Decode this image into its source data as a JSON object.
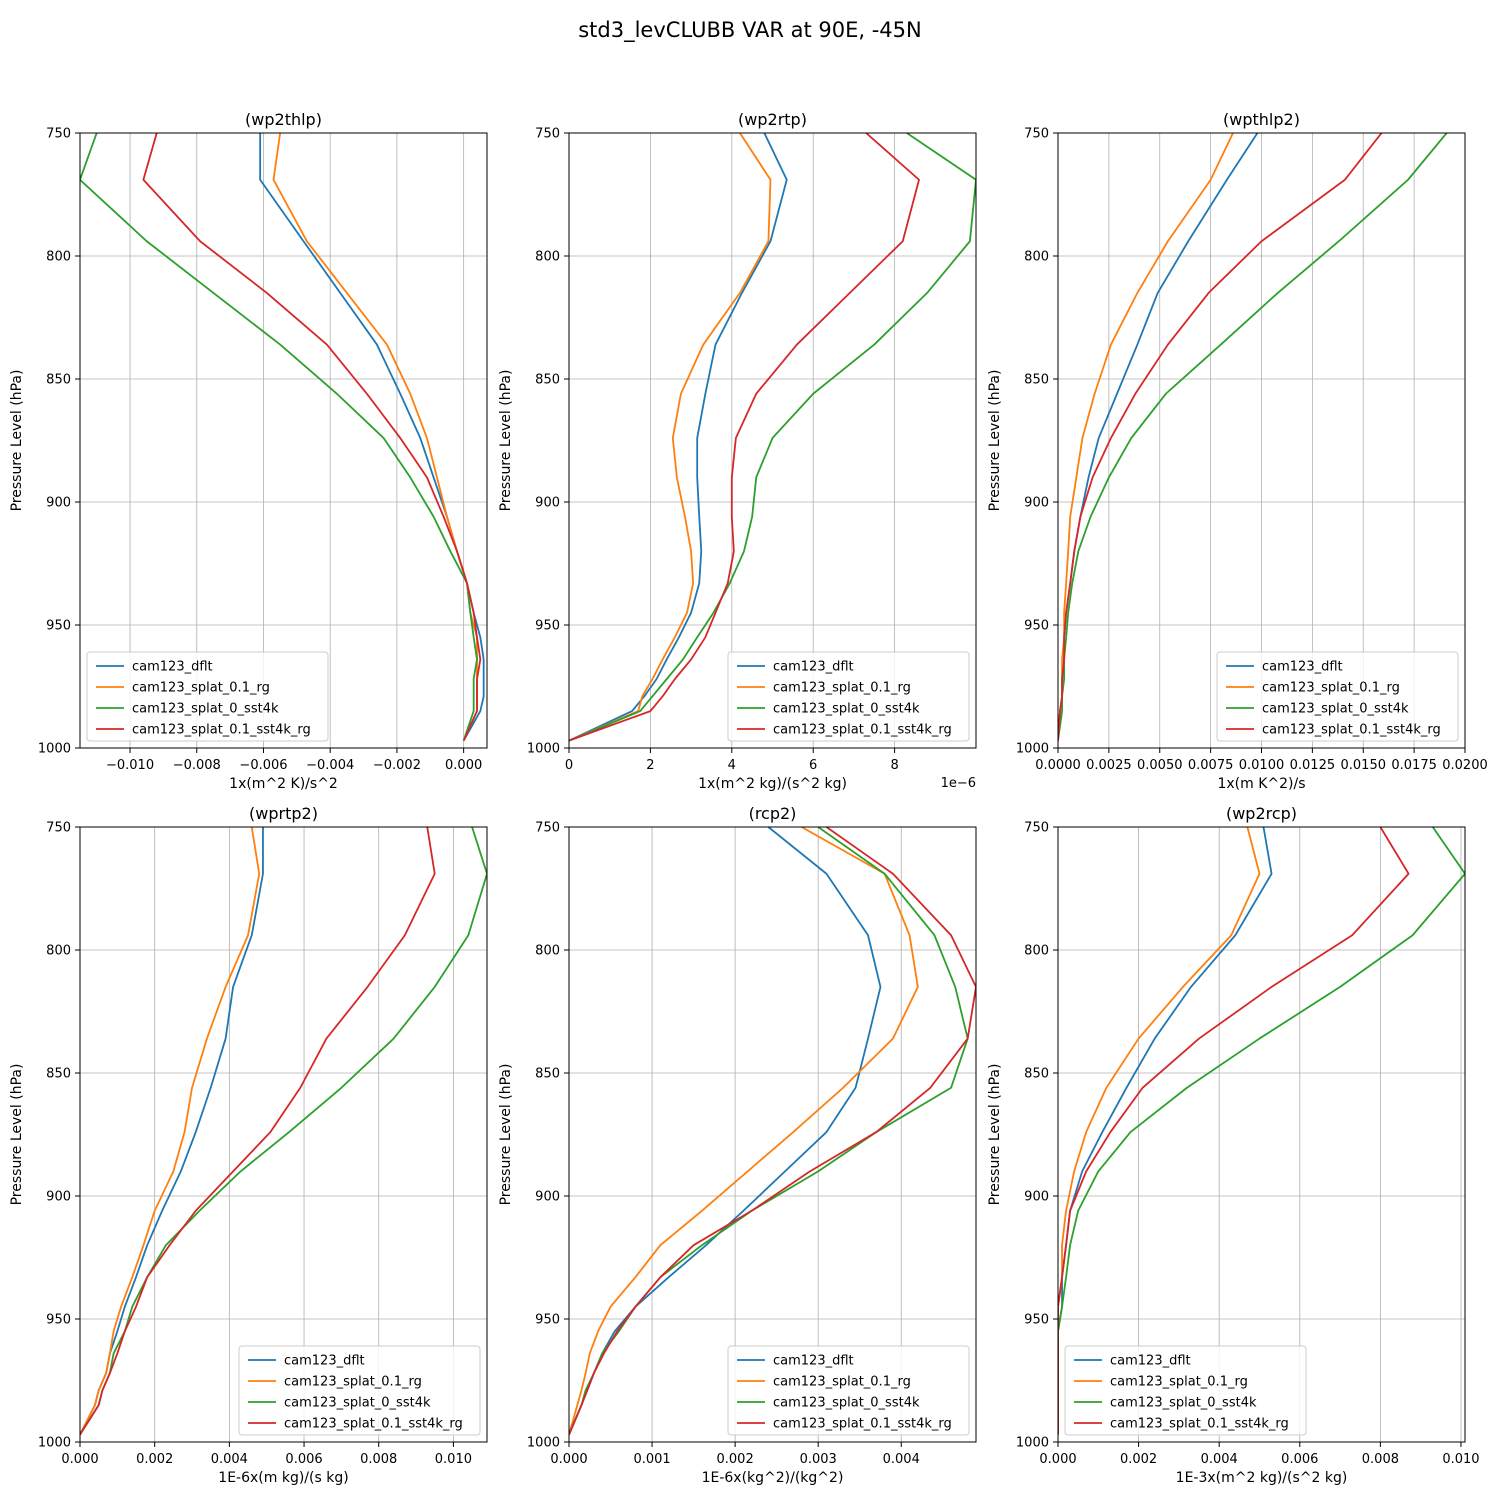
{
  "suptitle": "std3_levCLUBB VAR at 90E, -45N",
  "series_names": [
    "cam123_dflt",
    "cam123_splat_0.1_rg",
    "cam123_splat_0_sst4k",
    "cam123_splat_0.1_sst4k_rg"
  ],
  "series_colors": [
    "#1f77b4",
    "#ff7f0e",
    "#2ca02c",
    "#d62728"
  ],
  "ylabel": "Pressure Level (hPa)",
  "chart_data": [
    {
      "type": "line",
      "title": "(wp2thlp)",
      "xlabel": "1x(m^2 K)/s^2",
      "ylabel": "Pressure Level (hPa)",
      "offset_text": "",
      "xlim": [
        -0.0115,
        0.0007
      ],
      "ylim": [
        1000,
        750
      ],
      "xticks": [
        -0.01,
        -0.008,
        -0.006,
        -0.004,
        -0.002,
        0.0
      ],
      "xtick_labels": [
        "−0.010",
        "−0.008",
        "−0.006",
        "−0.004",
        "−0.002",
        "0.000"
      ],
      "yticks": [
        750,
        800,
        850,
        900,
        950,
        1000
      ],
      "ytick_labels": [
        "750",
        "800",
        "850",
        "900",
        "950",
        "1000"
      ],
      "legend": "lower-left",
      "levels": [
        750,
        769,
        794,
        815,
        836,
        856,
        874,
        890,
        906,
        920,
        933,
        945,
        955,
        964,
        972,
        979,
        985,
        997
      ],
      "series": [
        {
          "name": "cam123_dflt",
          "values": [
            -0.0061,
            -0.0061,
            -0.0048,
            -0.0037,
            -0.0026,
            -0.0019,
            -0.0013,
            -0.0009,
            -0.0005,
            -0.0002,
            0.0001,
            0.0003,
            0.0005,
            0.0006,
            0.0006,
            0.0006,
            0.0005,
            0.0
          ]
        },
        {
          "name": "cam123_splat_0.1_rg",
          "values": [
            -0.0055,
            -0.0057,
            -0.0047,
            -0.0035,
            -0.0023,
            -0.0016,
            -0.0011,
            -0.0008,
            -0.0005,
            -0.0002,
            0.0001,
            0.0002,
            0.0004,
            0.0004,
            0.0004,
            0.0004,
            0.0004,
            0.0
          ]
        },
        {
          "name": "cam123_splat_0_sst4k",
          "values": [
            -0.011,
            -0.0115,
            -0.0095,
            -0.0075,
            -0.0055,
            -0.0038,
            -0.0024,
            -0.0016,
            -0.0009,
            -0.0004,
            0.0001,
            0.0002,
            0.0003,
            0.0004,
            0.0003,
            0.0003,
            0.0003,
            0.0
          ]
        },
        {
          "name": "cam123_splat_0.1_sst4k_rg",
          "values": [
            -0.0092,
            -0.0096,
            -0.0079,
            -0.0059,
            -0.0041,
            -0.0029,
            -0.0019,
            -0.0011,
            -0.0006,
            -0.0002,
            0.0001,
            0.0003,
            0.0004,
            0.0005,
            0.0004,
            0.0004,
            0.0004,
            0.0
          ]
        }
      ]
    },
    {
      "type": "line",
      "title": "(wp2rtp)",
      "xlabel": "1x(m^2 kg)/(s^2 kg)",
      "ylabel": "Pressure Level (hPa)",
      "offset_text": "1e−6",
      "xlim": [
        0,
        1e-05
      ],
      "ylim": [
        1000,
        750
      ],
      "xticks": [
        0,
        2e-06,
        4e-06,
        6e-06,
        8e-06
      ],
      "xtick_labels": [
        "0",
        "2",
        "4",
        "6",
        "8"
      ],
      "yticks": [
        750,
        800,
        850,
        900,
        950,
        1000
      ],
      "ytick_labels": [
        "750",
        "800",
        "850",
        "900",
        "950",
        "1000"
      ],
      "legend": "lower-right",
      "levels": [
        750,
        769,
        794,
        815,
        836,
        856,
        874,
        890,
        906,
        920,
        933,
        945,
        955,
        964,
        972,
        979,
        985,
        997
      ],
      "series": [
        {
          "name": "cam123_dflt",
          "values": [
            4.8e-06,
            5.35e-06,
            4.95e-06,
            4.25e-06,
            3.6e-06,
            3.35e-06,
            3.15e-06,
            3.15e-06,
            3.2e-06,
            3.25e-06,
            3.2e-06,
            3e-06,
            2.7e-06,
            2.4e-06,
            2.15e-06,
            1.85e-06,
            1.55e-06,
            0
          ]
        },
        {
          "name": "cam123_splat_0.1_rg",
          "values": [
            4.2e-06,
            4.95e-06,
            4.9e-06,
            4.2e-06,
            3.3e-06,
            2.75e-06,
            2.55e-06,
            2.65e-06,
            2.85e-06,
            3e-06,
            3.05e-06,
            2.9e-06,
            2.6e-06,
            2.3e-06,
            2.05e-06,
            1.8e-06,
            1.7e-06,
            0
          ]
        },
        {
          "name": "cam123_splat_0_sst4k",
          "values": [
            8.3e-06,
            1e-05,
            9.85e-06,
            8.8e-06,
            7.5e-06,
            6e-06,
            5e-06,
            4.6e-06,
            4.5e-06,
            4.3e-06,
            3.95e-06,
            3.55e-06,
            3.15e-06,
            2.8e-06,
            2.4e-06,
            2.05e-06,
            1.75e-06,
            0
          ]
        },
        {
          "name": "cam123_splat_0.1_sst4k_rg",
          "values": [
            7.3e-06,
            8.6e-06,
            8.2e-06,
            6.9e-06,
            5.6e-06,
            4.6e-06,
            4.1e-06,
            4e-06,
            4e-06,
            4.05e-06,
            3.9e-06,
            3.6e-06,
            3.35e-06,
            3e-06,
            2.6e-06,
            2.3e-06,
            2e-06,
            0
          ]
        }
      ]
    },
    {
      "type": "line",
      "title": "(wpthlp2)",
      "xlabel": "1x(m K^2)/s",
      "ylabel": "Pressure Level (hPa)",
      "offset_text": "",
      "xlim": [
        0,
        0.02
      ],
      "ylim": [
        1000,
        750
      ],
      "xticks": [
        0.0,
        0.0025,
        0.005,
        0.0075,
        0.01,
        0.0125,
        0.015,
        0.0175,
        0.02
      ],
      "xtick_labels": [
        "0.0000",
        "0.0025",
        "0.0050",
        "0.0075",
        "0.0100",
        "0.0125",
        "0.0150",
        "0.0175",
        "0.0200"
      ],
      "yticks": [
        750,
        800,
        850,
        900,
        950,
        1000
      ],
      "ytick_labels": [
        "750",
        "800",
        "850",
        "900",
        "950",
        "1000"
      ],
      "legend": "lower-right",
      "levels": [
        750,
        769,
        794,
        815,
        836,
        856,
        874,
        890,
        906,
        920,
        933,
        945,
        955,
        964,
        972,
        979,
        985,
        997
      ],
      "series": [
        {
          "name": "cam123_dflt",
          "values": [
            0.0098,
            0.0083,
            0.0064,
            0.0049,
            0.0039,
            0.0029,
            0.002,
            0.0015,
            0.0011,
            0.0008,
            0.0006,
            0.0004,
            0.0003,
            0.0003,
            0.0002,
            0.0002,
            0.0001,
            0.0
          ]
        },
        {
          "name": "cam123_splat_0.1_rg",
          "values": [
            0.0086,
            0.0075,
            0.0054,
            0.0039,
            0.0026,
            0.0018,
            0.0012,
            0.0009,
            0.0006,
            0.0005,
            0.0004,
            0.0003,
            0.0003,
            0.0002,
            0.0002,
            0.0002,
            0.0001,
            0.0
          ]
        },
        {
          "name": "cam123_splat_0_sst4k",
          "values": [
            0.0191,
            0.0172,
            0.0138,
            0.0108,
            0.008,
            0.0053,
            0.0036,
            0.0025,
            0.0016,
            0.001,
            0.0007,
            0.0005,
            0.0004,
            0.0003,
            0.0003,
            0.0002,
            0.0002,
            0.0
          ]
        },
        {
          "name": "cam123_splat_0.1_sst4k_rg",
          "values": [
            0.0159,
            0.0141,
            0.01,
            0.0074,
            0.0054,
            0.0038,
            0.0026,
            0.0017,
            0.0011,
            0.0008,
            0.0006,
            0.0004,
            0.0003,
            0.0003,
            0.0002,
            0.0002,
            0.0001,
            0.0
          ]
        }
      ]
    },
    {
      "type": "line",
      "title": "(wprtp2)",
      "xlabel": "1E-6x(m kg)/(s kg)",
      "ylabel": "Pressure Level (hPa)",
      "offset_text": "",
      "xlim": [
        0,
        0.0109
      ],
      "ylim": [
        1000,
        750
      ],
      "xticks": [
        0.0,
        0.002,
        0.004,
        0.006,
        0.008,
        0.01
      ],
      "xtick_labels": [
        "0.000",
        "0.002",
        "0.004",
        "0.006",
        "0.008",
        "0.010"
      ],
      "yticks": [
        750,
        800,
        850,
        900,
        950,
        1000
      ],
      "ytick_labels": [
        "750",
        "800",
        "850",
        "900",
        "950",
        "1000"
      ],
      "legend": "lower-right",
      "levels": [
        750,
        769,
        794,
        815,
        836,
        856,
        874,
        890,
        906,
        920,
        933,
        945,
        955,
        964,
        972,
        979,
        985,
        997
      ],
      "series": [
        {
          "name": "cam123_dflt",
          "values": [
            0.0049,
            0.0049,
            0.0046,
            0.0041,
            0.0039,
            0.0035,
            0.0031,
            0.0027,
            0.0022,
            0.0018,
            0.0015,
            0.0012,
            0.001,
            0.0008,
            0.0007,
            0.0005,
            0.0004,
            0.0
          ]
        },
        {
          "name": "cam123_splat_0.1_rg",
          "values": [
            0.0046,
            0.0048,
            0.0045,
            0.0039,
            0.0034,
            0.003,
            0.0028,
            0.0025,
            0.002,
            0.0017,
            0.0014,
            0.0011,
            0.0009,
            0.0008,
            0.0007,
            0.0005,
            0.0004,
            0.0
          ]
        },
        {
          "name": "cam123_splat_0_sst4k",
          "values": [
            0.0105,
            0.0109,
            0.0104,
            0.0095,
            0.0084,
            0.007,
            0.0056,
            0.0043,
            0.0032,
            0.0023,
            0.0018,
            0.0014,
            0.0012,
            0.0009,
            0.0008,
            0.0006,
            0.0005,
            0.0
          ]
        },
        {
          "name": "cam123_splat_0.1_sst4k_rg",
          "values": [
            0.0093,
            0.0095,
            0.0087,
            0.0077,
            0.0066,
            0.0059,
            0.0051,
            0.0041,
            0.0031,
            0.0024,
            0.0018,
            0.0015,
            0.0012,
            0.001,
            0.0008,
            0.0006,
            0.0005,
            0.0
          ]
        }
      ]
    },
    {
      "type": "line",
      "title": "(rcp2)",
      "xlabel": "1E-6x(kg^2)/(kg^2)",
      "ylabel": "Pressure Level (hPa)",
      "offset_text": "",
      "xlim": [
        0,
        0.0049
      ],
      "ylim": [
        1000,
        750
      ],
      "xticks": [
        0.0,
        0.001,
        0.002,
        0.003,
        0.004
      ],
      "xtick_labels": [
        "0.000",
        "0.001",
        "0.002",
        "0.003",
        "0.004"
      ],
      "yticks": [
        750,
        800,
        850,
        900,
        950,
        1000
      ],
      "ytick_labels": [
        "750",
        "800",
        "850",
        "900",
        "950",
        "1000"
      ],
      "legend": "lower-right",
      "levels": [
        750,
        769,
        794,
        815,
        836,
        856,
        874,
        890,
        906,
        920,
        933,
        945,
        955,
        964,
        972,
        979,
        985,
        997
      ],
      "series": [
        {
          "name": "cam123_dflt",
          "values": [
            0.0024,
            0.0031,
            0.0036,
            0.00375,
            0.0036,
            0.00345,
            0.0031,
            0.0026,
            0.0021,
            0.00165,
            0.0012,
            0.0008,
            0.00055,
            0.0004,
            0.0003,
            0.00022,
            0.00015,
            0.0
          ]
        },
        {
          "name": "cam123_splat_0.1_rg",
          "values": [
            0.0028,
            0.0038,
            0.0041,
            0.0042,
            0.0039,
            0.0033,
            0.0027,
            0.00215,
            0.0016,
            0.0011,
            0.0008,
            0.0005,
            0.00035,
            0.00025,
            0.0002,
            0.00015,
            0.0001,
            0.0
          ]
        },
        {
          "name": "cam123_splat_0_sst4k",
          "values": [
            0.003,
            0.0038,
            0.0044,
            0.00465,
            0.0048,
            0.0046,
            0.0037,
            0.003,
            0.0022,
            0.0016,
            0.0011,
            0.0008,
            0.0006,
            0.0004,
            0.0003,
            0.0002,
            0.00015,
            0.0
          ]
        },
        {
          "name": "cam123_splat_0.1_sst4k_rg",
          "values": [
            0.0031,
            0.0039,
            0.0046,
            0.0049,
            0.0048,
            0.00435,
            0.0037,
            0.0029,
            0.0022,
            0.0015,
            0.0011,
            0.0008,
            0.00058,
            0.00042,
            0.0003,
            0.00022,
            0.00015,
            0.0
          ]
        }
      ]
    },
    {
      "type": "line",
      "title": "(wp2rcp)",
      "xlabel": "1E-3x(m^2 kg)/(s^2 kg)",
      "ylabel": "Pressure Level (hPa)",
      "offset_text": "",
      "xlim": [
        0,
        0.0101
      ],
      "ylim": [
        1000,
        750
      ],
      "xticks": [
        0.0,
        0.002,
        0.004,
        0.006,
        0.008,
        0.01
      ],
      "xtick_labels": [
        "0.000",
        "0.002",
        "0.004",
        "0.006",
        "0.008",
        "0.010"
      ],
      "yticks": [
        750,
        800,
        850,
        900,
        950,
        1000
      ],
      "ytick_labels": [
        "750",
        "800",
        "850",
        "900",
        "950",
        "1000"
      ],
      "legend": "lower-left",
      "levels": [
        750,
        769,
        794,
        815,
        836,
        856,
        874,
        890,
        906,
        920,
        933,
        945,
        955,
        964,
        972,
        979,
        985,
        997
      ],
      "series": [
        {
          "name": "cam123_dflt",
          "values": [
            0.0051,
            0.0053,
            0.0044,
            0.0033,
            0.0024,
            0.0017,
            0.0011,
            0.0006,
            0.0003,
            0.0002,
            0.0001,
            0.0001,
            0.0,
            0.0,
            0.0,
            0.0,
            0.0,
            0.0
          ]
        },
        {
          "name": "cam123_splat_0.1_rg",
          "values": [
            0.0047,
            0.005,
            0.0043,
            0.0031,
            0.002,
            0.0012,
            0.0007,
            0.0004,
            0.0002,
            0.0001,
            0.0001,
            0.0,
            0.0,
            0.0,
            0.0,
            0.0,
            0.0,
            0.0
          ]
        },
        {
          "name": "cam123_splat_0_sst4k",
          "values": [
            0.0093,
            0.0101,
            0.0088,
            0.007,
            0.005,
            0.0032,
            0.0018,
            0.001,
            0.0005,
            0.0003,
            0.0002,
            0.0001,
            0.0,
            0.0,
            0.0,
            0.0,
            0.0,
            0.0
          ]
        },
        {
          "name": "cam123_splat_0.1_sst4k_rg",
          "values": [
            0.008,
            0.0087,
            0.0073,
            0.0053,
            0.0035,
            0.0021,
            0.0013,
            0.0007,
            0.0003,
            0.0002,
            0.0001,
            0.0,
            0.0,
            0.0,
            0.0,
            0.0,
            0.0,
            0.0
          ]
        }
      ]
    }
  ]
}
